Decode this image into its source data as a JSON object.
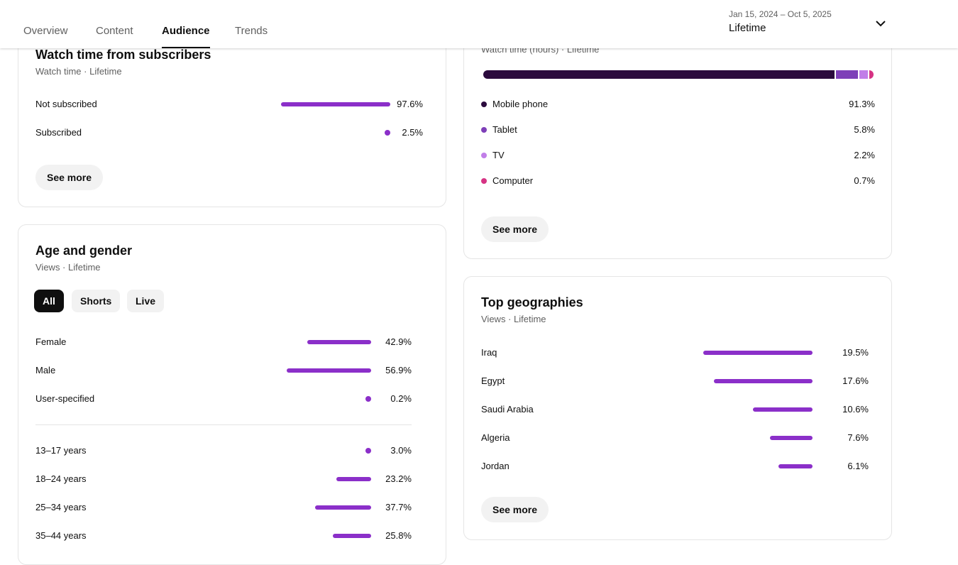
{
  "header": {
    "tabs": [
      {
        "label": "Overview"
      },
      {
        "label": "Content"
      },
      {
        "label": "Audience"
      },
      {
        "label": "Trends"
      }
    ],
    "active_tab": "Audience",
    "date_range": "Jan 15, 2024 – Oct 5, 2025",
    "period": "Lifetime"
  },
  "subscribers": {
    "title": "Watch time from subscribers",
    "subtitle": "Watch time · Lifetime",
    "rows": [
      {
        "label": "Not subscribed",
        "value": "97.6%",
        "fraction": 0.976
      },
      {
        "label": "Subscribed",
        "value": "2.5%",
        "fraction": 0.025
      }
    ],
    "see_more": "See more"
  },
  "devices": {
    "subtitle": "Watch time (hours) · Lifetime",
    "segments": [
      {
        "label": "Mobile phone",
        "value": "91.3%",
        "fraction": 0.913,
        "color": "#2b0a3d"
      },
      {
        "label": "Tablet",
        "value": "5.8%",
        "fraction": 0.058,
        "color": "#7e3fb8"
      },
      {
        "label": "TV",
        "value": "2.2%",
        "fraction": 0.022,
        "color": "#c17ee8"
      },
      {
        "label": "Computer",
        "value": "0.7%",
        "fraction": 0.007,
        "color": "#d63384"
      }
    ],
    "see_more": "See more"
  },
  "age_gender": {
    "title": "Age and gender",
    "subtitle": "Views · Lifetime",
    "chips": [
      {
        "label": "All",
        "active": true
      },
      {
        "label": "Shorts",
        "active": false
      },
      {
        "label": "Live",
        "active": false
      }
    ],
    "gender": [
      {
        "label": "Female",
        "value": "42.9%",
        "fraction": 0.429
      },
      {
        "label": "Male",
        "value": "56.9%",
        "fraction": 0.569
      },
      {
        "label": "User-specified",
        "value": "0.2%",
        "fraction": 0.002
      }
    ],
    "ages": [
      {
        "label": "13–17 years",
        "value": "3.0%",
        "fraction": 0.03
      },
      {
        "label": "18–24 years",
        "value": "23.2%",
        "fraction": 0.232
      },
      {
        "label": "25–34 years",
        "value": "37.7%",
        "fraction": 0.377
      },
      {
        "label": "35–44 years",
        "value": "25.8%",
        "fraction": 0.258
      }
    ]
  },
  "geographies": {
    "title": "Top geographies",
    "subtitle": "Views · Lifetime",
    "rows": [
      {
        "label": "Iraq",
        "value": "19.5%",
        "fraction": 0.195
      },
      {
        "label": "Egypt",
        "value": "17.6%",
        "fraction": 0.176
      },
      {
        "label": "Saudi Arabia",
        "value": "10.6%",
        "fraction": 0.106
      },
      {
        "label": "Algeria",
        "value": "7.6%",
        "fraction": 0.076
      },
      {
        "label": "Jordan",
        "value": "6.1%",
        "fraction": 0.061
      }
    ],
    "see_more": "See more"
  },
  "colors": {
    "bar": "#8b2fc9"
  }
}
